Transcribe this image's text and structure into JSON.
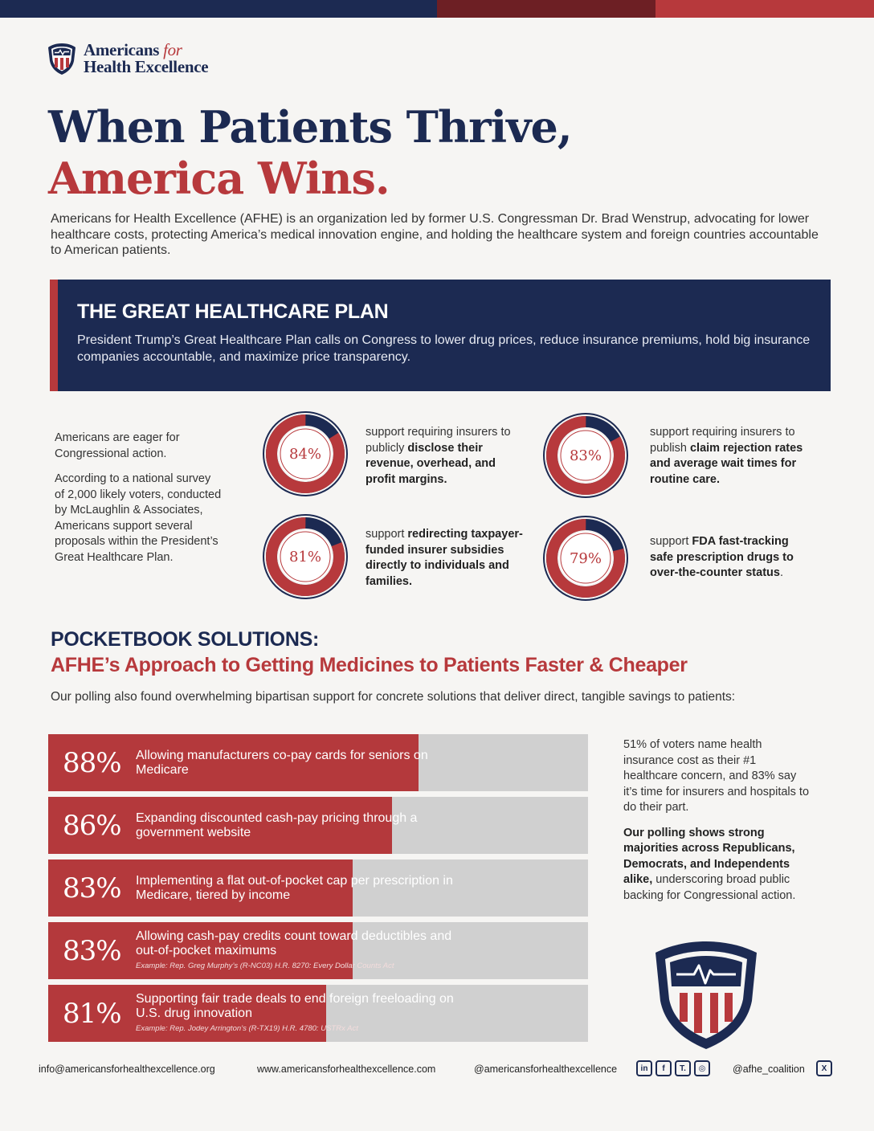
{
  "brand": {
    "name_line1_a": "Americans",
    "name_line1_b": "for",
    "name_line2": "Health Excellence"
  },
  "headline": {
    "line1": "When Patients Thrive,",
    "line2": "America Wins."
  },
  "intro": "Americans for Health Excellence (AFHE) is an organization led by former U.S. Congressman Dr. Brad Wenstrup, advocating for lower healthcare costs, protecting America’s medical innovation engine, and holding the healthcare system and foreign countries accountable to American patients.",
  "plan": {
    "title": "THE GREAT HEALTHCARE PLAN",
    "text": "President Trump’s Great Healthcare Plan calls on Congress to lower drug prices, reduce insurance premiums, hold big insurance companies accountable, and maximize price transparency."
  },
  "survey": {
    "lead1": "Americans are eager for Congressional action.",
    "lead2": "According to a national survey of 2,000 likely voters, conducted by McLaughlin & Associates, Americans support several proposals within the President’s Great Healthcare Plan.",
    "stats": [
      {
        "pct": "84%",
        "value": 84,
        "pre": "support requiring insurers to publicly ",
        "bold": "disclose their revenue, overhead, and profit margins.",
        "post": ""
      },
      {
        "pct": "83%",
        "value": 83,
        "pre": "support requiring insurers to publish ",
        "bold": "claim rejection rates and average wait times for routine care.",
        "post": ""
      },
      {
        "pct": "81%",
        "value": 81,
        "pre": "support ",
        "bold": "redirecting taxpayer-funded insurer subsidies directly to individuals and families.",
        "post": ""
      },
      {
        "pct": "79%",
        "value": 79,
        "pre": "support ",
        "bold": "FDA fast-tracking safe prescription drugs to over-the-counter status",
        "post": "."
      }
    ]
  },
  "pocketbook": {
    "title": "POCKETBOOK SOLUTIONS:",
    "subtitle": "AFHE’s Approach to Getting Medicines to Patients Faster & Cheaper",
    "lead": "Our polling also found overwhelming bipartisan support for concrete solutions that deliver direct, tangible savings to patients:",
    "bars": [
      {
        "pct": "88%",
        "value": 88,
        "label": "Allowing manufacturers co-pay cards for seniors on Medicare",
        "note": ""
      },
      {
        "pct": "86%",
        "value": 86,
        "label": "Expanding discounted cash-pay pricing through a government website",
        "note": ""
      },
      {
        "pct": "83%",
        "value": 83,
        "label": "Implementing a flat out-of-pocket cap per prescription in Medicare, tiered by income",
        "note": ""
      },
      {
        "pct": "83%",
        "value": 83,
        "label": "Allowing cash-pay credits count toward deductibles and out-of-pocket maximums",
        "note": "Example: Rep. Greg Murphy’s (R-NC03) H.R. 8270: Every Dollar Counts Act"
      },
      {
        "pct": "81%",
        "value": 81,
        "label": "Supporting fair trade deals to end foreign freeloading on U.S. drug innovation",
        "note": "Example: Rep. Jodey Arrington’s (R-TX19) H.R. 4780: USTRx Act"
      }
    ]
  },
  "side": {
    "p1": "51% of voters name health insurance cost as their #1 healthcare concern, and 83% say it’s time for insurers and hospitals to do their part.",
    "p2_bold": "Our polling shows strong majorities across Republicans, Democrats, and Independents alike,",
    "p2_rest": " underscoring broad public backing for Congressional action."
  },
  "footer": {
    "email": "info@americansforhealthexcellence.org",
    "website": "www.americansforhealthexcellence.com",
    "handle": "@americansforhealthexcellence",
    "x_handle": "@afhe_coalition"
  },
  "colors": {
    "navy": "#1c2a52",
    "red": "#b7393c",
    "gray": "#d0d0d0"
  }
}
